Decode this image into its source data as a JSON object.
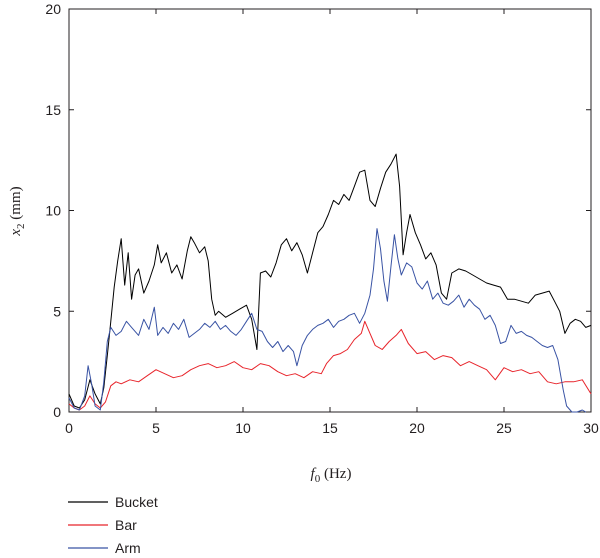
{
  "chart_data": {
    "type": "line",
    "xlabel_symbol": "f",
    "xlabel_sub": "0",
    "xlabel_unit": " (Hz)",
    "ylabel_symbol": "x",
    "ylabel_sub": "2",
    "ylabel_unit": " (mm)",
    "xlim": [
      0,
      30
    ],
    "ylim": [
      0,
      20
    ],
    "xticks": [
      0,
      5,
      10,
      15,
      20,
      25,
      30
    ],
    "yticks": [
      0,
      5,
      10,
      15,
      20
    ],
    "grid": false,
    "legend_position": "bottom-left",
    "series": [
      {
        "name": "Bucket",
        "color": "#000000",
        "points": [
          [
            0,
            0.9
          ],
          [
            0.3,
            0.3
          ],
          [
            0.6,
            0.2
          ],
          [
            0.9,
            0.6
          ],
          [
            1.2,
            1.6
          ],
          [
            1.5,
            0.9
          ],
          [
            1.8,
            0.4
          ],
          [
            2.0,
            1.2
          ],
          [
            2.2,
            2.8
          ],
          [
            2.4,
            4.5
          ],
          [
            2.6,
            6.2
          ],
          [
            2.8,
            7.5
          ],
          [
            3.0,
            8.6
          ],
          [
            3.2,
            6.3
          ],
          [
            3.4,
            7.9
          ],
          [
            3.6,
            5.6
          ],
          [
            3.8,
            6.8
          ],
          [
            4.0,
            7.1
          ],
          [
            4.3,
            5.9
          ],
          [
            4.6,
            6.5
          ],
          [
            4.9,
            7.3
          ],
          [
            5.1,
            8.3
          ],
          [
            5.3,
            7.4
          ],
          [
            5.6,
            7.9
          ],
          [
            5.9,
            6.9
          ],
          [
            6.2,
            7.3
          ],
          [
            6.5,
            6.6
          ],
          [
            6.8,
            8.0
          ],
          [
            7.0,
            8.7
          ],
          [
            7.2,
            8.4
          ],
          [
            7.5,
            7.9
          ],
          [
            7.8,
            8.2
          ],
          [
            8.0,
            7.5
          ],
          [
            8.2,
            5.6
          ],
          [
            8.4,
            4.8
          ],
          [
            8.6,
            5.0
          ],
          [
            9.0,
            4.7
          ],
          [
            9.4,
            4.9
          ],
          [
            9.8,
            5.1
          ],
          [
            10.2,
            5.3
          ],
          [
            10.5,
            4.6
          ],
          [
            10.8,
            3.1
          ],
          [
            11.0,
            6.9
          ],
          [
            11.3,
            7.0
          ],
          [
            11.6,
            6.7
          ],
          [
            11.9,
            7.4
          ],
          [
            12.2,
            8.3
          ],
          [
            12.5,
            8.6
          ],
          [
            12.8,
            8.0
          ],
          [
            13.1,
            8.4
          ],
          [
            13.4,
            7.8
          ],
          [
            13.7,
            6.9
          ],
          [
            14.0,
            7.9
          ],
          [
            14.3,
            8.9
          ],
          [
            14.6,
            9.2
          ],
          [
            14.9,
            9.8
          ],
          [
            15.2,
            10.5
          ],
          [
            15.5,
            10.3
          ],
          [
            15.8,
            10.8
          ],
          [
            16.1,
            10.5
          ],
          [
            16.4,
            11.2
          ],
          [
            16.7,
            11.9
          ],
          [
            17.0,
            12.0
          ],
          [
            17.3,
            10.5
          ],
          [
            17.6,
            10.2
          ],
          [
            17.9,
            11.1
          ],
          [
            18.2,
            11.9
          ],
          [
            18.5,
            12.3
          ],
          [
            18.8,
            12.8
          ],
          [
            19.0,
            11.2
          ],
          [
            19.2,
            7.8
          ],
          [
            19.4,
            8.9
          ],
          [
            19.6,
            9.8
          ],
          [
            19.9,
            8.9
          ],
          [
            20.2,
            8.3
          ],
          [
            20.5,
            7.6
          ],
          [
            20.8,
            7.9
          ],
          [
            21.1,
            7.3
          ],
          [
            21.4,
            5.9
          ],
          [
            21.7,
            5.6
          ],
          [
            22.0,
            6.9
          ],
          [
            22.4,
            7.1
          ],
          [
            22.8,
            7.0
          ],
          [
            23.2,
            6.8
          ],
          [
            23.6,
            6.6
          ],
          [
            24.0,
            6.4
          ],
          [
            24.4,
            6.3
          ],
          [
            24.8,
            6.2
          ],
          [
            25.2,
            5.6
          ],
          [
            25.6,
            5.6
          ],
          [
            26.0,
            5.5
          ],
          [
            26.4,
            5.4
          ],
          [
            26.8,
            5.8
          ],
          [
            27.2,
            5.9
          ],
          [
            27.6,
            6.0
          ],
          [
            27.9,
            5.5
          ],
          [
            28.2,
            5.0
          ],
          [
            28.5,
            3.9
          ],
          [
            28.8,
            4.4
          ],
          [
            29.1,
            4.6
          ],
          [
            29.4,
            4.5
          ],
          [
            29.7,
            4.2
          ],
          [
            30.0,
            4.3
          ]
        ]
      },
      {
        "name": "Bar",
        "color": "#e8242b",
        "points": [
          [
            0,
            0.4
          ],
          [
            0.3,
            0.2
          ],
          [
            0.6,
            0.1
          ],
          [
            0.9,
            0.3
          ],
          [
            1.2,
            0.8
          ],
          [
            1.5,
            0.4
          ],
          [
            1.8,
            0.2
          ],
          [
            2.1,
            0.5
          ],
          [
            2.4,
            1.3
          ],
          [
            2.7,
            1.5
          ],
          [
            3.0,
            1.4
          ],
          [
            3.5,
            1.6
          ],
          [
            4.0,
            1.5
          ],
          [
            4.5,
            1.8
          ],
          [
            5.0,
            2.1
          ],
          [
            5.5,
            1.9
          ],
          [
            6.0,
            1.7
          ],
          [
            6.5,
            1.8
          ],
          [
            7.0,
            2.1
          ],
          [
            7.5,
            2.3
          ],
          [
            8.0,
            2.4
          ],
          [
            8.5,
            2.2
          ],
          [
            9.0,
            2.3
          ],
          [
            9.5,
            2.5
          ],
          [
            10.0,
            2.2
          ],
          [
            10.5,
            2.1
          ],
          [
            11.0,
            2.4
          ],
          [
            11.5,
            2.3
          ],
          [
            12.0,
            2.0
          ],
          [
            12.5,
            1.8
          ],
          [
            13.0,
            1.9
          ],
          [
            13.5,
            1.7
          ],
          [
            14.0,
            2.0
          ],
          [
            14.5,
            1.9
          ],
          [
            14.8,
            2.4
          ],
          [
            15.2,
            2.8
          ],
          [
            15.6,
            2.9
          ],
          [
            16.0,
            3.1
          ],
          [
            16.4,
            3.6
          ],
          [
            16.8,
            3.9
          ],
          [
            17.0,
            4.5
          ],
          [
            17.3,
            3.9
          ],
          [
            17.6,
            3.3
          ],
          [
            18.0,
            3.1
          ],
          [
            18.4,
            3.5
          ],
          [
            18.8,
            3.8
          ],
          [
            19.1,
            4.1
          ],
          [
            19.5,
            3.4
          ],
          [
            20.0,
            2.9
          ],
          [
            20.5,
            3.0
          ],
          [
            21.0,
            2.6
          ],
          [
            21.5,
            2.8
          ],
          [
            22.0,
            2.7
          ],
          [
            22.5,
            2.3
          ],
          [
            23.0,
            2.5
          ],
          [
            23.5,
            2.3
          ],
          [
            24.0,
            2.1
          ],
          [
            24.5,
            1.6
          ],
          [
            25.0,
            2.2
          ],
          [
            25.5,
            2.0
          ],
          [
            26.0,
            2.1
          ],
          [
            26.5,
            1.9
          ],
          [
            27.0,
            2.0
          ],
          [
            27.5,
            1.5
          ],
          [
            28.0,
            1.4
          ],
          [
            28.5,
            1.5
          ],
          [
            29.0,
            1.5
          ],
          [
            29.5,
            1.6
          ],
          [
            30.0,
            0.9
          ]
        ]
      },
      {
        "name": "Arm",
        "color": "#3953a4",
        "points": [
          [
            0,
            0.7
          ],
          [
            0.3,
            0.2
          ],
          [
            0.6,
            0.1
          ],
          [
            0.9,
            0.8
          ],
          [
            1.1,
            2.3
          ],
          [
            1.3,
            1.4
          ],
          [
            1.5,
            0.3
          ],
          [
            1.8,
            0.1
          ],
          [
            2.0,
            1.5
          ],
          [
            2.2,
            3.5
          ],
          [
            2.4,
            4.2
          ],
          [
            2.7,
            3.8
          ],
          [
            3.0,
            4.0
          ],
          [
            3.3,
            4.5
          ],
          [
            3.6,
            4.2
          ],
          [
            4.0,
            3.8
          ],
          [
            4.3,
            4.6
          ],
          [
            4.6,
            4.1
          ],
          [
            4.9,
            5.2
          ],
          [
            5.1,
            3.8
          ],
          [
            5.4,
            4.2
          ],
          [
            5.7,
            3.9
          ],
          [
            6.0,
            4.4
          ],
          [
            6.3,
            4.1
          ],
          [
            6.6,
            4.6
          ],
          [
            6.9,
            3.7
          ],
          [
            7.2,
            3.9
          ],
          [
            7.5,
            4.1
          ],
          [
            7.8,
            4.4
          ],
          [
            8.1,
            4.2
          ],
          [
            8.4,
            4.5
          ],
          [
            8.7,
            4.1
          ],
          [
            9.0,
            4.3
          ],
          [
            9.3,
            4.0
          ],
          [
            9.6,
            3.8
          ],
          [
            9.9,
            4.1
          ],
          [
            10.2,
            4.5
          ],
          [
            10.5,
            4.9
          ],
          [
            10.8,
            4.1
          ],
          [
            11.1,
            4.0
          ],
          [
            11.4,
            3.5
          ],
          [
            11.7,
            3.2
          ],
          [
            12.0,
            3.5
          ],
          [
            12.3,
            3.0
          ],
          [
            12.6,
            3.3
          ],
          [
            12.9,
            3.0
          ],
          [
            13.1,
            2.3
          ],
          [
            13.4,
            3.3
          ],
          [
            13.7,
            3.8
          ],
          [
            14.0,
            4.1
          ],
          [
            14.3,
            4.3
          ],
          [
            14.6,
            4.4
          ],
          [
            14.9,
            4.6
          ],
          [
            15.2,
            4.2
          ],
          [
            15.5,
            4.5
          ],
          [
            15.8,
            4.6
          ],
          [
            16.1,
            4.8
          ],
          [
            16.4,
            4.9
          ],
          [
            16.7,
            4.4
          ],
          [
            17.0,
            4.9
          ],
          [
            17.3,
            5.8
          ],
          [
            17.5,
            7.1
          ],
          [
            17.7,
            9.1
          ],
          [
            17.9,
            8.1
          ],
          [
            18.1,
            6.5
          ],
          [
            18.3,
            5.5
          ],
          [
            18.5,
            7.2
          ],
          [
            18.7,
            8.8
          ],
          [
            18.9,
            7.6
          ],
          [
            19.1,
            6.8
          ],
          [
            19.4,
            7.4
          ],
          [
            19.7,
            7.2
          ],
          [
            20.0,
            6.4
          ],
          [
            20.3,
            6.1
          ],
          [
            20.6,
            6.5
          ],
          [
            20.9,
            5.6
          ],
          [
            21.2,
            5.9
          ],
          [
            21.5,
            5.4
          ],
          [
            21.8,
            5.3
          ],
          [
            22.1,
            5.5
          ],
          [
            22.4,
            5.8
          ],
          [
            22.7,
            5.2
          ],
          [
            23.0,
            5.6
          ],
          [
            23.3,
            5.3
          ],
          [
            23.6,
            5.1
          ],
          [
            23.9,
            4.6
          ],
          [
            24.2,
            4.8
          ],
          [
            24.5,
            4.3
          ],
          [
            24.8,
            3.4
          ],
          [
            25.1,
            3.5
          ],
          [
            25.4,
            4.3
          ],
          [
            25.7,
            3.9
          ],
          [
            26.0,
            4.0
          ],
          [
            26.3,
            3.8
          ],
          [
            26.6,
            3.7
          ],
          [
            26.9,
            3.5
          ],
          [
            27.2,
            3.3
          ],
          [
            27.5,
            3.2
          ],
          [
            27.8,
            3.3
          ],
          [
            28.1,
            2.6
          ],
          [
            28.4,
            1.1
          ],
          [
            28.6,
            0.3
          ],
          [
            28.9,
            0.0
          ],
          [
            29.2,
            0.0
          ],
          [
            29.5,
            0.1
          ],
          [
            29.7,
            0.0
          ],
          [
            30.0,
            0.0
          ]
        ]
      }
    ]
  }
}
